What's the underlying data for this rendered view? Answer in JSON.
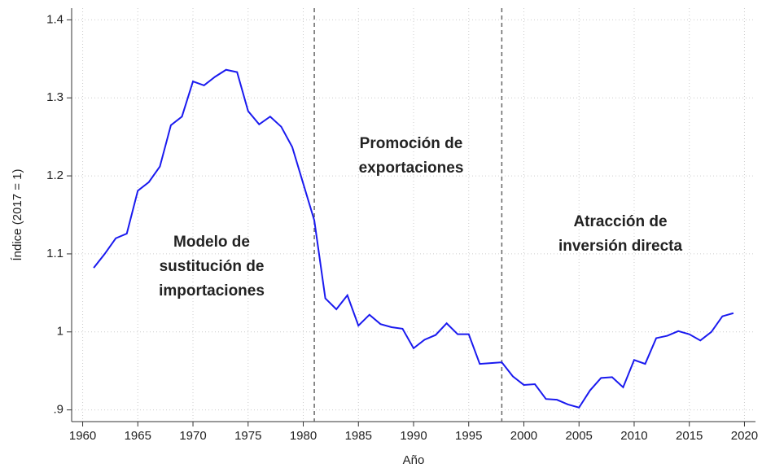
{
  "chart_data": {
    "type": "line",
    "x_label": "Año",
    "y_label": "Índice (2017 = 1)",
    "x": [
      1961,
      1962,
      1963,
      1964,
      1965,
      1966,
      1967,
      1968,
      1969,
      1970,
      1971,
      1972,
      1973,
      1974,
      1975,
      1976,
      1977,
      1978,
      1979,
      1980,
      1981,
      1982,
      1983,
      1984,
      1985,
      1986,
      1987,
      1988,
      1989,
      1990,
      1991,
      1992,
      1993,
      1994,
      1995,
      1996,
      1997,
      1998,
      1999,
      2000,
      2001,
      2002,
      2003,
      2004,
      2005,
      2006,
      2007,
      2008,
      2009,
      2010,
      2011,
      2012,
      2013,
      2014,
      2015,
      2016,
      2017,
      2018,
      2019
    ],
    "values": [
      1.082,
      1.1,
      1.12,
      1.126,
      1.181,
      1.192,
      1.212,
      1.265,
      1.276,
      1.321,
      1.316,
      1.327,
      1.336,
      1.333,
      1.283,
      1.266,
      1.276,
      1.263,
      1.237,
      1.19,
      1.143,
      1.043,
      1.029,
      1.047,
      1.008,
      1.022,
      1.01,
      1.006,
      1.004,
      0.979,
      0.99,
      0.996,
      1.011,
      0.997,
      0.997,
      0.959,
      0.96,
      0.961,
      0.943,
      0.932,
      0.933,
      0.914,
      0.913,
      0.907,
      0.903,
      0.925,
      0.941,
      0.942,
      0.929,
      0.964,
      0.959,
      0.992,
      0.995,
      1.001,
      0.997,
      0.989,
      1.0,
      1.02,
      1.024
    ],
    "color": "#1a1aef",
    "xlim": [
      1959,
      2021
    ],
    "ylim": [
      0.885,
      1.415
    ],
    "xticks": [
      1960,
      1965,
      1970,
      1975,
      1980,
      1985,
      1990,
      1995,
      2000,
      2005,
      2010,
      2015,
      2020
    ],
    "yticks": [
      {
        "value": 0.9,
        "label": ".9"
      },
      1,
      1.1,
      1.2,
      1.3,
      1.4
    ],
    "grid": true,
    "vlines": [
      1981,
      1998
    ],
    "annotations": [
      [
        "Modelo de",
        "sustitución de",
        "importaciones"
      ],
      [
        "Promoción de",
        "exportaciones"
      ],
      [
        "Atracción de",
        "inversión directa"
      ]
    ],
    "annotation_color": "#ed7d31"
  }
}
